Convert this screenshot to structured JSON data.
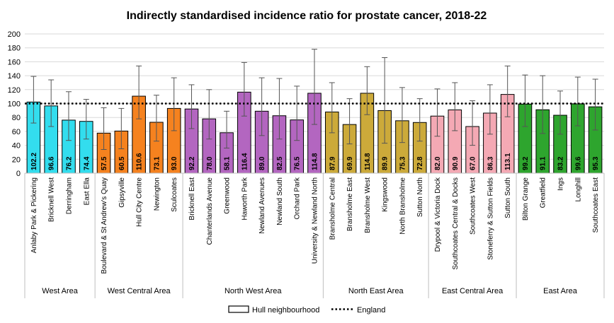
{
  "chart_data": {
    "type": "bar",
    "title": "Indirectly standardised incidence ratio for prostate cancer, 2018-22",
    "ylim": [
      0,
      200
    ],
    "ytick_step": 20,
    "grid": "horizontal",
    "reference_line": {
      "name": "England",
      "value": 100
    },
    "legend": {
      "position": "bottom",
      "items": [
        "Hull neighbourhood",
        "England"
      ]
    },
    "groups": [
      {
        "name": "West Area",
        "color": "#33ddee",
        "bars": [
          {
            "label": "Anlaby Park & Pickering",
            "value": 102.2,
            "value_label": "102.2",
            "ci": [
              72,
              139
            ]
          },
          {
            "label": "Bricknell West",
            "value": 96.6,
            "value_label": "96.6",
            "ci": [
              67,
              134
            ]
          },
          {
            "label": "Derringham",
            "value": 76.2,
            "value_label": "76.2",
            "ci": [
              47,
              117
            ]
          },
          {
            "label": "East Ella",
            "value": 74.4,
            "value_label": "74.4",
            "ci": [
              49,
              106
            ]
          }
        ]
      },
      {
        "name": "West Central Area",
        "color": "#f5821f",
        "bars": [
          {
            "label": "Boulevard & St Andrew's Quay",
            "value": 57.5,
            "value_label": "57.5",
            "ci": [
              34,
              94
            ]
          },
          {
            "label": "Gipsyville",
            "value": 60.5,
            "value_label": "60.5",
            "ci": [
              35,
              93
            ]
          },
          {
            "label": "Hull City Centre",
            "value": 110.6,
            "value_label": "110.6",
            "ci": [
              78,
              154
            ]
          },
          {
            "label": "Newington",
            "value": 73.1,
            "value_label": "73.1",
            "ci": [
              46,
              112
            ]
          },
          {
            "label": "Sculcoates",
            "value": 93.0,
            "value_label": "93.0",
            "ci": [
              61,
              137
            ]
          }
        ]
      },
      {
        "name": "North West Area",
        "color": "#b366c0",
        "bars": [
          {
            "label": "Bricknell East",
            "value": 92.2,
            "value_label": "92.2",
            "ci": [
              64,
              127
            ]
          },
          {
            "label": "Chanterlands Avenue",
            "value": 78.0,
            "value_label": "78.0",
            "ci": [
              49,
              120
            ]
          },
          {
            "label": "Greenwood",
            "value": 58.1,
            "value_label": "58.1",
            "ci": [
              36,
              89
            ]
          },
          {
            "label": "Haworth Park",
            "value": 116.4,
            "value_label": "116.4",
            "ci": [
              82,
              159
            ]
          },
          {
            "label": "Newland Avenues",
            "value": 89.0,
            "value_label": "89.0",
            "ci": [
              54,
              137
            ]
          },
          {
            "label": "Newland South",
            "value": 82.5,
            "value_label": "82.5",
            "ci": [
              49,
              136
            ]
          },
          {
            "label": "Orchard Park",
            "value": 76.5,
            "value_label": "76.5",
            "ci": [
              47,
              125
            ]
          },
          {
            "label": "University & Newland North",
            "value": 114.8,
            "value_label": "114.8",
            "ci": [
              70,
              178
            ]
          }
        ]
      },
      {
        "name": "North East Area",
        "color": "#ccaa3a",
        "bars": [
          {
            "label": "Bransholme Central",
            "value": 87.9,
            "value_label": "87.9",
            "ci": [
              58,
              130
            ]
          },
          {
            "label": "Bransholme East",
            "value": 69.9,
            "value_label": "69.9",
            "ci": [
              42,
              107
            ]
          },
          {
            "label": "Bransholme West",
            "value": 114.8,
            "value_label": "114.8",
            "ci": [
              84,
              153
            ]
          },
          {
            "label": "Kingswood",
            "value": 89.9,
            "value_label": "89.9",
            "ci": [
              43,
              166
            ]
          },
          {
            "label": "North Bransholme",
            "value": 75.3,
            "value_label": "75.3",
            "ci": [
              44,
              123
            ]
          },
          {
            "label": "Sutton North",
            "value": 72.8,
            "value_label": "72.8",
            "ci": [
              46,
              107
            ]
          }
        ]
      },
      {
        "name": "East Central Area",
        "color": "#f4a9b4",
        "bars": [
          {
            "label": "Drypool & Victoria Dock",
            "value": 82.0,
            "value_label": "82.0",
            "ci": [
              53,
              121
            ]
          },
          {
            "label": "Southcoates Central & Docks",
            "value": 90.9,
            "value_label": "90.9",
            "ci": [
              61,
              130
            ]
          },
          {
            "label": "Southcoates West",
            "value": 67.0,
            "value_label": "67.0",
            "ci": [
              40,
              104
            ]
          },
          {
            "label": "Stoneferry & Sutton Fields",
            "value": 86.3,
            "value_label": "86.3",
            "ci": [
              56,
              127
            ]
          },
          {
            "label": "Sutton South",
            "value": 113.1,
            "value_label": "113.1",
            "ci": [
              81,
              154
            ]
          }
        ]
      },
      {
        "name": "East Area",
        "color": "#2ea52e",
        "bars": [
          {
            "label": "Bilton Grange",
            "value": 99.2,
            "value_label": "99.2",
            "ci": [
              67,
              141
            ]
          },
          {
            "label": "Greatfield",
            "value": 91.1,
            "value_label": "91.1",
            "ci": [
              57,
              140
            ]
          },
          {
            "label": "Ings",
            "value": 83.2,
            "value_label": "83.2",
            "ci": [
              56,
              118
            ]
          },
          {
            "label": "Longhill",
            "value": 99.6,
            "value_label": "99.6",
            "ci": [
              68,
              138
            ]
          },
          {
            "label": "Southcoates East",
            "value": 95.3,
            "value_label": "95.3",
            "ci": [
              62,
              135
            ]
          }
        ]
      }
    ]
  }
}
